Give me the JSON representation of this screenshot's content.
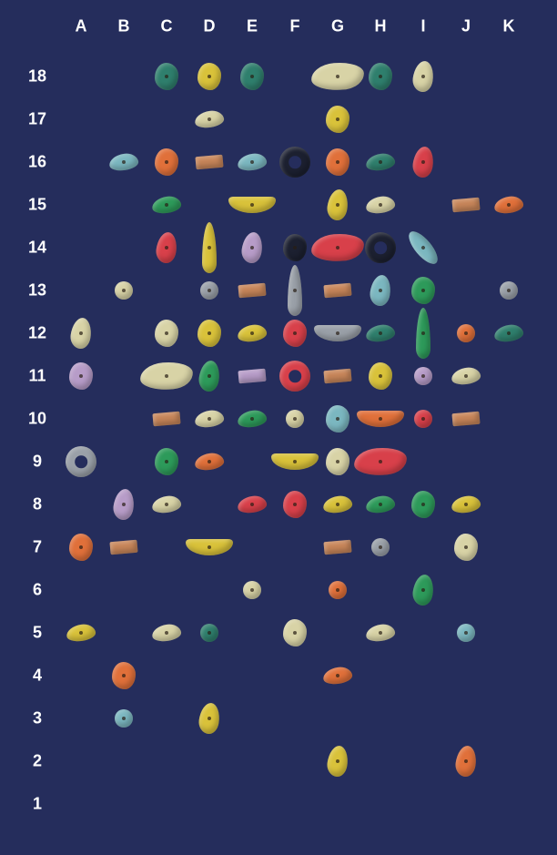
{
  "columns": [
    "A",
    "B",
    "C",
    "D",
    "E",
    "F",
    "G",
    "H",
    "I",
    "J",
    "K"
  ],
  "rows": [
    "18",
    "17",
    "16",
    "15",
    "14",
    "13",
    "12",
    "11",
    "10",
    "9",
    "8",
    "7",
    "6",
    "5",
    "4",
    "3",
    "2",
    "1"
  ],
  "colors": {
    "background": "#252d5c",
    "label": "#ffffff",
    "teal": "#2f7f6d",
    "yellow": "#d9c23a",
    "cream": "#d8d3a6",
    "orange": "#e0703a",
    "red": "#d8404a",
    "green": "#2d9a5a",
    "wood": "#c8865a",
    "black": "#1c2030",
    "lavender": "#b79cc8",
    "lightblue": "#7bb7c0",
    "grey": "#9aa0a8"
  },
  "holds": [
    {
      "c": "C",
      "r": "18",
      "color": "teal",
      "shape": "blob"
    },
    {
      "c": "D",
      "r": "18",
      "color": "yellow",
      "shape": "blob"
    },
    {
      "c": "E",
      "r": "18",
      "color": "teal",
      "shape": "blob"
    },
    {
      "c": "G",
      "r": "18",
      "color": "cream",
      "shape": "big"
    },
    {
      "c": "H",
      "r": "18",
      "color": "teal",
      "shape": "blob"
    },
    {
      "c": "I",
      "r": "18",
      "color": "cream",
      "shape": "tall"
    },
    {
      "c": "D",
      "r": "17",
      "color": "cream",
      "shape": "flat"
    },
    {
      "c": "G",
      "r": "17",
      "color": "yellow",
      "shape": "blob"
    },
    {
      "c": "B",
      "r": "16",
      "color": "lightblue",
      "shape": "flat"
    },
    {
      "c": "C",
      "r": "16",
      "color": "orange",
      "shape": "blob"
    },
    {
      "c": "D",
      "r": "16",
      "color": "wood",
      "shape": "plate"
    },
    {
      "c": "E",
      "r": "16",
      "color": "lightblue",
      "shape": "flat"
    },
    {
      "c": "F",
      "r": "16",
      "color": "black",
      "shape": "ring"
    },
    {
      "c": "G",
      "r": "16",
      "color": "orange",
      "shape": "blob"
    },
    {
      "c": "H",
      "r": "16",
      "color": "teal",
      "shape": "flat"
    },
    {
      "c": "I",
      "r": "16",
      "color": "red",
      "shape": "tall"
    },
    {
      "c": "C",
      "r": "15",
      "color": "green",
      "shape": "flat"
    },
    {
      "c": "E",
      "r": "15",
      "color": "yellow",
      "shape": "wide"
    },
    {
      "c": "G",
      "r": "15",
      "color": "yellow",
      "shape": "tall"
    },
    {
      "c": "H",
      "r": "15",
      "color": "cream",
      "shape": "flat"
    },
    {
      "c": "J",
      "r": "15",
      "color": "wood",
      "shape": "plate"
    },
    {
      "c": "K",
      "r": "15",
      "color": "orange",
      "shape": "flat"
    },
    {
      "c": "C",
      "r": "14",
      "color": "red",
      "shape": "tall"
    },
    {
      "c": "D",
      "r": "14",
      "color": "yellow",
      "shape": "spike"
    },
    {
      "c": "E",
      "r": "14",
      "color": "lavender",
      "shape": "tall"
    },
    {
      "c": "F",
      "r": "14",
      "color": "black",
      "shape": "blob"
    },
    {
      "c": "G",
      "r": "14",
      "color": "red",
      "shape": "big"
    },
    {
      "c": "H",
      "r": "14",
      "color": "black",
      "shape": "ring"
    },
    {
      "c": "I",
      "r": "14",
      "color": "lightblue",
      "shape": "slant"
    },
    {
      "c": "B",
      "r": "13",
      "color": "cream",
      "shape": "small"
    },
    {
      "c": "D",
      "r": "13",
      "color": "grey",
      "shape": "small"
    },
    {
      "c": "E",
      "r": "13",
      "color": "wood",
      "shape": "plate"
    },
    {
      "c": "F",
      "r": "13",
      "color": "grey",
      "shape": "spike"
    },
    {
      "c": "G",
      "r": "13",
      "color": "wood",
      "shape": "plate"
    },
    {
      "c": "H",
      "r": "13",
      "color": "lightblue",
      "shape": "tall"
    },
    {
      "c": "I",
      "r": "13",
      "color": "green",
      "shape": "blob"
    },
    {
      "c": "K",
      "r": "13",
      "color": "grey",
      "shape": "small"
    },
    {
      "c": "A",
      "r": "12",
      "color": "cream",
      "shape": "tall"
    },
    {
      "c": "C",
      "r": "12",
      "color": "cream",
      "shape": "blob"
    },
    {
      "c": "D",
      "r": "12",
      "color": "yellow",
      "shape": "blob"
    },
    {
      "c": "E",
      "r": "12",
      "color": "yellow",
      "shape": "flat"
    },
    {
      "c": "F",
      "r": "12",
      "color": "red",
      "shape": "blob"
    },
    {
      "c": "G",
      "r": "12",
      "color": "grey",
      "shape": "wide"
    },
    {
      "c": "H",
      "r": "12",
      "color": "teal",
      "shape": "flat"
    },
    {
      "c": "I",
      "r": "12",
      "color": "green",
      "shape": "spike"
    },
    {
      "c": "J",
      "r": "12",
      "color": "orange",
      "shape": "small"
    },
    {
      "c": "K",
      "r": "12",
      "color": "teal",
      "shape": "flat"
    },
    {
      "c": "A",
      "r": "11",
      "color": "lavender",
      "shape": "blob"
    },
    {
      "c": "C",
      "r": "11",
      "color": "cream",
      "shape": "big"
    },
    {
      "c": "D",
      "r": "11",
      "color": "green",
      "shape": "tall"
    },
    {
      "c": "E",
      "r": "11",
      "color": "lavender",
      "shape": "plate"
    },
    {
      "c": "F",
      "r": "11",
      "color": "red",
      "shape": "ring"
    },
    {
      "c": "G",
      "r": "11",
      "color": "wood",
      "shape": "plate"
    },
    {
      "c": "H",
      "r": "11",
      "color": "yellow",
      "shape": "blob"
    },
    {
      "c": "I",
      "r": "11",
      "color": "lavender",
      "shape": "small"
    },
    {
      "c": "J",
      "r": "11",
      "color": "cream",
      "shape": "flat"
    },
    {
      "c": "C",
      "r": "10",
      "color": "wood",
      "shape": "plate"
    },
    {
      "c": "D",
      "r": "10",
      "color": "cream",
      "shape": "flat"
    },
    {
      "c": "E",
      "r": "10",
      "color": "green",
      "shape": "flat"
    },
    {
      "c": "F",
      "r": "10",
      "color": "cream",
      "shape": "small"
    },
    {
      "c": "G",
      "r": "10",
      "color": "lightblue",
      "shape": "blob"
    },
    {
      "c": "H",
      "r": "10",
      "color": "orange",
      "shape": "wide"
    },
    {
      "c": "I",
      "r": "10",
      "color": "red",
      "shape": "small"
    },
    {
      "c": "J",
      "r": "10",
      "color": "wood",
      "shape": "plate"
    },
    {
      "c": "A",
      "r": "9",
      "color": "grey",
      "shape": "ring"
    },
    {
      "c": "C",
      "r": "9",
      "color": "green",
      "shape": "blob"
    },
    {
      "c": "D",
      "r": "9",
      "color": "orange",
      "shape": "flat"
    },
    {
      "c": "F",
      "r": "9",
      "color": "yellow",
      "shape": "wide"
    },
    {
      "c": "G",
      "r": "9",
      "color": "cream",
      "shape": "blob"
    },
    {
      "c": "H",
      "r": "9",
      "color": "red",
      "shape": "big"
    },
    {
      "c": "B",
      "r": "8",
      "color": "lavender",
      "shape": "tall"
    },
    {
      "c": "C",
      "r": "8",
      "color": "cream",
      "shape": "flat"
    },
    {
      "c": "E",
      "r": "8",
      "color": "red",
      "shape": "flat"
    },
    {
      "c": "F",
      "r": "8",
      "color": "red",
      "shape": "blob"
    },
    {
      "c": "G",
      "r": "8",
      "color": "yellow",
      "shape": "flat"
    },
    {
      "c": "H",
      "r": "8",
      "color": "green",
      "shape": "flat"
    },
    {
      "c": "I",
      "r": "8",
      "color": "green",
      "shape": "blob"
    },
    {
      "c": "J",
      "r": "8",
      "color": "yellow",
      "shape": "flat"
    },
    {
      "c": "A",
      "r": "7",
      "color": "orange",
      "shape": "blob"
    },
    {
      "c": "B",
      "r": "7",
      "color": "wood",
      "shape": "plate"
    },
    {
      "c": "D",
      "r": "7",
      "color": "yellow",
      "shape": "wide"
    },
    {
      "c": "G",
      "r": "7",
      "color": "wood",
      "shape": "plate"
    },
    {
      "c": "H",
      "r": "7",
      "color": "grey",
      "shape": "small"
    },
    {
      "c": "J",
      "r": "7",
      "color": "cream",
      "shape": "blob"
    },
    {
      "c": "E",
      "r": "6",
      "color": "cream",
      "shape": "small"
    },
    {
      "c": "G",
      "r": "6",
      "color": "orange",
      "shape": "small"
    },
    {
      "c": "I",
      "r": "6",
      "color": "green",
      "shape": "tall"
    },
    {
      "c": "A",
      "r": "5",
      "color": "yellow",
      "shape": "flat"
    },
    {
      "c": "C",
      "r": "5",
      "color": "cream",
      "shape": "flat"
    },
    {
      "c": "D",
      "r": "5",
      "color": "teal",
      "shape": "small"
    },
    {
      "c": "F",
      "r": "5",
      "color": "cream",
      "shape": "blob"
    },
    {
      "c": "H",
      "r": "5",
      "color": "cream",
      "shape": "flat"
    },
    {
      "c": "J",
      "r": "5",
      "color": "lightblue",
      "shape": "small"
    },
    {
      "c": "B",
      "r": "4",
      "color": "orange",
      "shape": "blob"
    },
    {
      "c": "G",
      "r": "4",
      "color": "orange",
      "shape": "flat"
    },
    {
      "c": "B",
      "r": "3",
      "color": "lightblue",
      "shape": "small"
    },
    {
      "c": "D",
      "r": "3",
      "color": "yellow",
      "shape": "tall"
    },
    {
      "c": "G",
      "r": "2",
      "color": "yellow",
      "shape": "tall"
    },
    {
      "c": "J",
      "r": "2",
      "color": "orange",
      "shape": "tall"
    }
  ]
}
